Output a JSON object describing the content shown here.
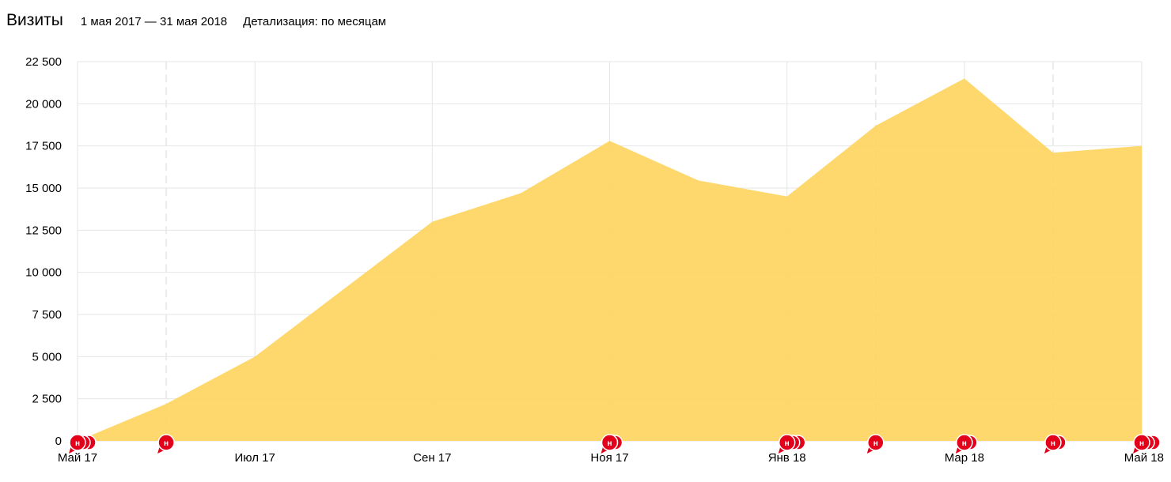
{
  "header": {
    "title": "Визиты",
    "period": "1 мая 2017 — 31 мая 2018",
    "detail": "Детализация: по месяцам"
  },
  "colors": {
    "area": "#fed55f",
    "grid": "#e6e6e6",
    "marker": "#e2001a"
  },
  "marker_label": "н",
  "chart_data": {
    "type": "area",
    "title": "Визиты",
    "xlabel": "",
    "ylabel": "",
    "ylim": [
      0,
      22500
    ],
    "y_ticks": [
      0,
      2500,
      5000,
      7500,
      10000,
      12500,
      15000,
      17500,
      20000,
      22500
    ],
    "y_tick_labels": [
      "0",
      "2 500",
      "5 000",
      "7 500",
      "10 000",
      "12 500",
      "15 000",
      "17 500",
      "20 000",
      "22 500"
    ],
    "x": [
      "2017-05",
      "2017-06",
      "2017-07",
      "2017-08",
      "2017-09",
      "2017-10",
      "2017-11",
      "2017-12",
      "2018-01",
      "2018-02",
      "2018-03",
      "2018-04",
      "2018-05"
    ],
    "x_tick_labels": [
      "Май 17",
      "Июл 17",
      "Сен 17",
      "Ноя 17",
      "Янв 18",
      "Мар 18",
      "Май 18"
    ],
    "x_tick_months": [
      "2017-05",
      "2017-07",
      "2017-09",
      "2017-11",
      "2018-01",
      "2018-03",
      "2018-05"
    ],
    "dashed_grid_months": [
      "2017-06",
      "2018-02",
      "2018-04"
    ],
    "series": [
      {
        "values": [
          0,
          2200,
          5000,
          9000,
          13000,
          14700,
          17800,
          15450,
          14500,
          18700,
          21500,
          17100,
          17500
        ]
      }
    ],
    "annotations": [
      {
        "month": "2017-05",
        "count": 3
      },
      {
        "month": "2017-06",
        "count": 1
      },
      {
        "month": "2017-11",
        "count": 2
      },
      {
        "month": "2018-01",
        "count": 3
      },
      {
        "month": "2018-02",
        "count": 1
      },
      {
        "month": "2018-03",
        "count": 2
      },
      {
        "month": "2018-04",
        "count": 2
      },
      {
        "month": "2018-05",
        "count": 3
      }
    ],
    "grid": true,
    "legend": "none"
  }
}
